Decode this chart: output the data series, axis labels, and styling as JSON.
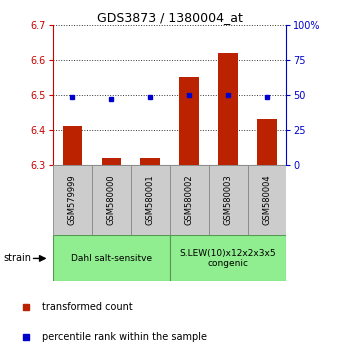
{
  "title": "GDS3873 / 1380004_at",
  "samples": [
    "GSM579999",
    "GSM580000",
    "GSM580001",
    "GSM580002",
    "GSM580003",
    "GSM580004"
  ],
  "transformed_counts": [
    6.41,
    6.32,
    6.32,
    6.55,
    6.62,
    6.43
  ],
  "percentile_ranks": [
    48,
    47,
    48,
    50,
    50,
    48
  ],
  "ylim_left": [
    6.3,
    6.7
  ],
  "ylim_right": [
    0,
    100
  ],
  "yticks_left": [
    6.3,
    6.4,
    6.5,
    6.6,
    6.7
  ],
  "yticks_right": [
    0,
    25,
    50,
    75,
    100
  ],
  "groups": [
    {
      "label": "Dahl salt-sensitve",
      "start": 0,
      "end": 3,
      "color": "#90EE90"
    },
    {
      "label": "S.LEW(10)x12x2x3x5\ncongenic",
      "start": 3,
      "end": 6,
      "color": "#90EE90"
    }
  ],
  "bar_color": "#BB2200",
  "dot_color": "#0000CC",
  "left_axis_color": "#CC0000",
  "right_axis_color": "#0000CC",
  "background_color": "#ffffff",
  "grid_color": "#333333",
  "sample_box_color": "#cccccc",
  "sample_box_edge": "#888888"
}
